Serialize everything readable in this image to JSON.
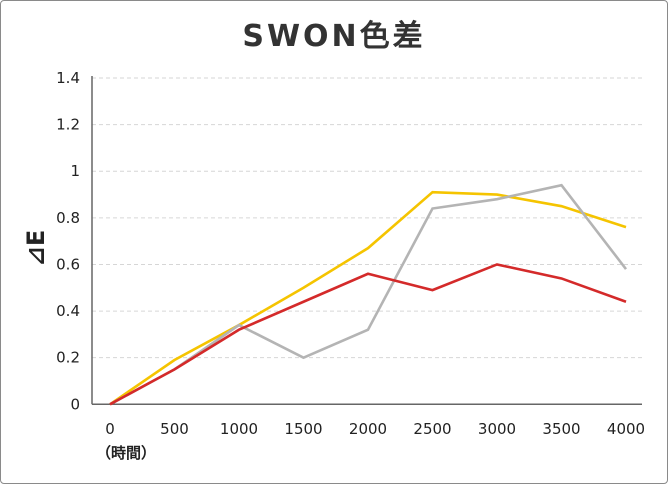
{
  "chart_data": {
    "type": "line",
    "title": "SWON色差",
    "xlabel": "（時間）",
    "ylabel": "⊿E",
    "x": [
      0,
      500,
      1000,
      1500,
      2000,
      2500,
      3000,
      3500,
      4000
    ],
    "x_tick_labels": [
      "0",
      "500",
      "1000",
      "1500",
      "2000",
      "2500",
      "3000",
      "3500",
      "4000"
    ],
    "ylim": [
      0,
      1.4
    ],
    "y_tick_labels": [
      "0",
      "0.2",
      "0.4",
      "0.6",
      "0.8",
      "1",
      "1.2",
      "1.4"
    ],
    "y_ticks": [
      0,
      0.2,
      0.4,
      0.6,
      0.8,
      1,
      1.2,
      1.4
    ],
    "grid": "horizontal dashed",
    "legend": "none",
    "series": [
      {
        "color": "#f5c400",
        "values": [
          0,
          0.19,
          0.34,
          0.5,
          0.67,
          0.91,
          0.9,
          0.85,
          0.76
        ]
      },
      {
        "color": "#b4b4b4",
        "values": [
          0,
          0.15,
          0.34,
          0.2,
          0.32,
          0.84,
          0.88,
          0.94,
          0.58
        ]
      },
      {
        "color": "#d42a2a",
        "values": [
          0,
          0.15,
          0.32,
          0.44,
          0.56,
          0.49,
          0.6,
          0.54,
          0.44
        ]
      }
    ]
  }
}
